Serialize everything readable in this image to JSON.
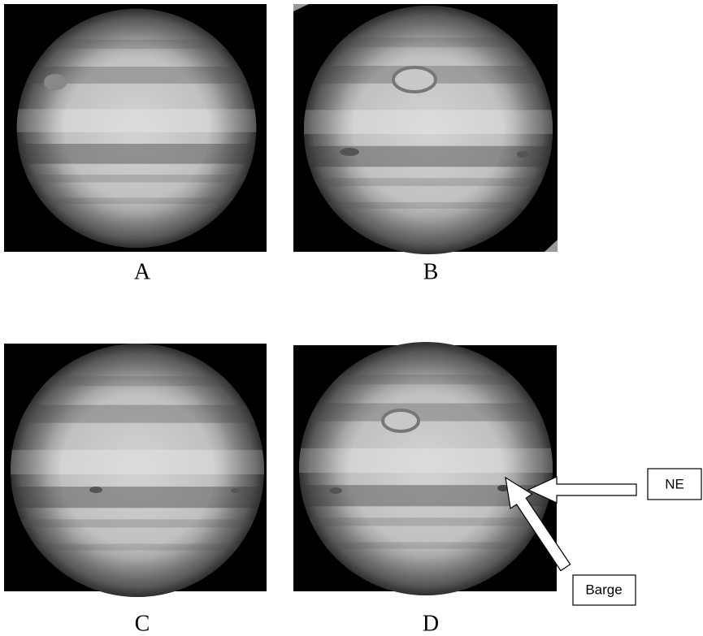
{
  "panels": [
    {
      "label": "A"
    },
    {
      "label": "B"
    },
    {
      "label": "C"
    },
    {
      "label": "D"
    }
  ],
  "annotations": [
    {
      "text": "NE"
    },
    {
      "text": "Barge"
    }
  ]
}
